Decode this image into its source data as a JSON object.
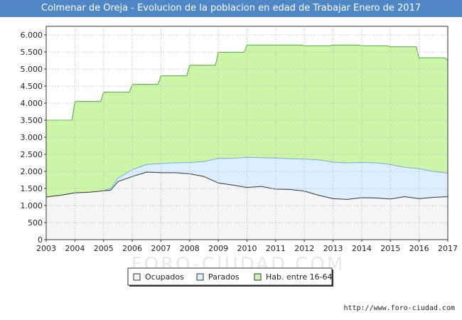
{
  "title": "Colmenar de Oreja - Evolucion de la poblacion en edad de Trabajar Enero de 2017",
  "source": "http://www.foro-ciudad.com",
  "watermark": "FORO-CIUDAD.COM",
  "chart_data": {
    "type": "area",
    "xlim": [
      2003,
      2017
    ],
    "ylim": [
      0,
      6250
    ],
    "x_ticks": [
      2003,
      2004,
      2005,
      2006,
      2007,
      2008,
      2009,
      2010,
      2011,
      2012,
      2013,
      2014,
      2015,
      2016,
      2017
    ],
    "y_ticks": [
      0,
      500,
      1000,
      1500,
      2000,
      2500,
      3000,
      3500,
      4000,
      4500,
      5000,
      5500,
      6000
    ],
    "y_tick_labels": [
      "0",
      "500",
      "1.000",
      "1.500",
      "2.000",
      "2.500",
      "3.000",
      "3.500",
      "4.000",
      "4.500",
      "5.000",
      "5.500",
      "6.000"
    ],
    "grid": true,
    "legend_position": "bottom",
    "series": [
      {
        "name": "Hab. entre 16-64",
        "color": "#ccf5a7",
        "line_color": "#55a83a",
        "step": true,
        "x": [
          2003,
          2004,
          2005,
          2006,
          2007,
          2008,
          2009,
          2010,
          2011,
          2012,
          2013,
          2014,
          2015,
          2016,
          2017
        ],
        "values": [
          3500,
          4050,
          4320,
          4550,
          4800,
          5110,
          5490,
          5700,
          5700,
          5680,
          5700,
          5680,
          5650,
          5330,
          5250
        ]
      },
      {
        "name": "Parados",
        "color": "#ddeeff",
        "line_color": "#7aaad6",
        "x": [
          2003,
          2003.5,
          2004,
          2004.5,
          2005,
          2005.25,
          2005.5,
          2006,
          2006.5,
          2007,
          2007.5,
          2008,
          2008.5,
          2009,
          2009.5,
          2010,
          2010.5,
          2011,
          2011.5,
          2012,
          2012.5,
          2013,
          2013.5,
          2014,
          2014.5,
          2015,
          2015.5,
          2016,
          2016.5,
          2017
        ],
        "values": [
          1250,
          1300,
          1370,
          1390,
          1430,
          1500,
          1800,
          2050,
          2200,
          2230,
          2250,
          2260,
          2290,
          2380,
          2380,
          2410,
          2400,
          2390,
          2370,
          2360,
          2340,
          2270,
          2250,
          2260,
          2250,
          2200,
          2120,
          2080,
          2000,
          1950
        ]
      },
      {
        "name": "Ocupados",
        "color": "#f5f5f5",
        "line_color": "#333333",
        "x": [
          2003,
          2003.5,
          2004,
          2004.5,
          2005,
          2005.25,
          2005.5,
          2006,
          2006.5,
          2007,
          2007.5,
          2008,
          2008.5,
          2009,
          2009.5,
          2010,
          2010.5,
          2011,
          2011.5,
          2012,
          2012.5,
          2013,
          2013.5,
          2014,
          2014.5,
          2015,
          2015.5,
          2016,
          2016.5,
          2017
        ],
        "values": [
          1250,
          1300,
          1370,
          1390,
          1430,
          1450,
          1700,
          1850,
          1980,
          1960,
          1960,
          1930,
          1850,
          1660,
          1600,
          1530,
          1560,
          1480,
          1470,
          1420,
          1300,
          1200,
          1180,
          1230,
          1220,
          1190,
          1260,
          1200,
          1240,
          1260
        ]
      }
    ],
    "legend": [
      "Ocupados",
      "Parados",
      "Hab. entre 16-64"
    ]
  }
}
